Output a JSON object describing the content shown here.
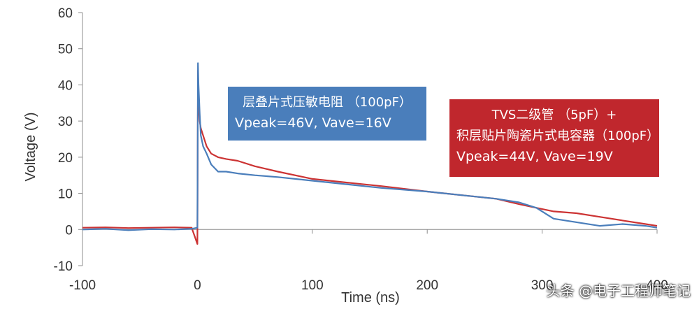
{
  "chart_data": {
    "type": "line",
    "xlabel": "Time (ns)",
    "ylabel": "Voltage (V)",
    "xlim": [
      -100,
      400
    ],
    "ylim": [
      -10,
      60
    ],
    "xticks": [
      -100,
      0,
      100,
      200,
      300,
      400
    ],
    "yticks": [
      -10,
      0,
      10,
      20,
      30,
      40,
      50,
      60
    ],
    "series": [
      {
        "color": "#4a7ebb",
        "x": [
          -100,
          -80,
          -60,
          -40,
          -20,
          -5,
          0,
          0.5,
          1,
          2,
          3,
          5,
          8,
          12,
          18,
          25,
          35,
          50,
          70,
          100,
          130,
          160,
          200,
          230,
          260,
          280,
          295,
          310,
          330,
          350,
          370,
          390,
          400
        ],
        "y": [
          0,
          0.2,
          -0.2,
          0.1,
          0,
          0.2,
          0.5,
          46,
          40,
          32,
          26,
          23,
          21,
          18,
          16,
          16,
          15.5,
          15,
          14.5,
          13.5,
          12.5,
          11.5,
          10.5,
          9.5,
          8.5,
          7.5,
          6,
          3,
          2,
          1,
          1.5,
          1,
          0.5
        ]
      },
      {
        "color": "#cc3333",
        "x": [
          -100,
          -80,
          -60,
          -40,
          -20,
          -5,
          0,
          0.5,
          1,
          2,
          3,
          5,
          8,
          12,
          18,
          25,
          35,
          50,
          70,
          100,
          130,
          160,
          200,
          230,
          260,
          280,
          295,
          310,
          330,
          350,
          370,
          390,
          400
        ],
        "y": [
          0.5,
          0.6,
          0.4,
          0.5,
          0.6,
          0.5,
          -4,
          44,
          36,
          30,
          28,
          26,
          23,
          21,
          20,
          19.5,
          19,
          17.5,
          16,
          14,
          13,
          12,
          10.5,
          9.5,
          8.5,
          7,
          6,
          5,
          4.5,
          3.5,
          2.5,
          1.5,
          1
        ]
      }
    ]
  },
  "annotations": {
    "blue_box": {
      "line1": "层叠片式压敏电阻 （100pF）",
      "line2": "Vpeak=46V, Vave=16V",
      "color": "#4a7ebb"
    },
    "red_box": {
      "line1a": "TVS二级管 （5pF）+",
      "line1b": "积层贴片陶瓷片式电容器（100pF）",
      "line2": "Vpeak=44V, Vave=19V",
      "color": "#c0272d"
    }
  },
  "watermark": "头条 @电子工程师笔记"
}
